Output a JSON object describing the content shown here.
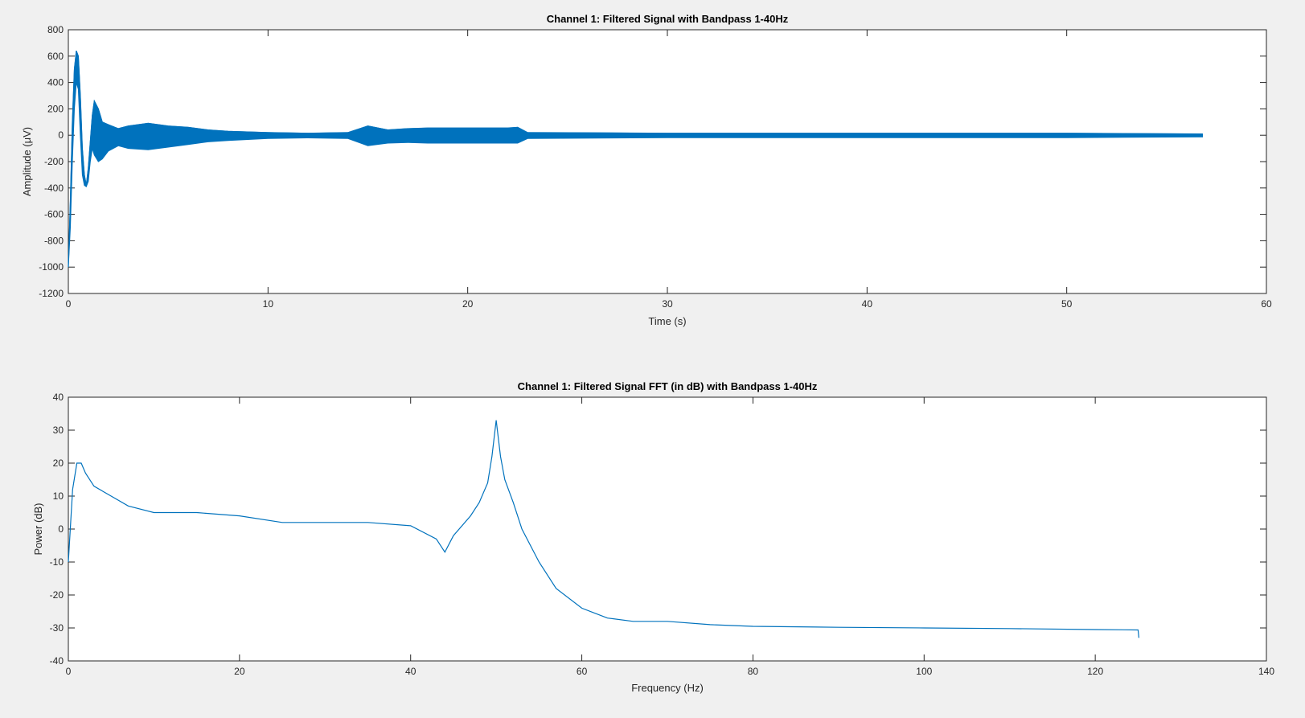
{
  "figure": {
    "background": "#f0f0f0",
    "line_color": "#0072bd"
  },
  "chart_data": [
    {
      "type": "line",
      "title": "Channel 1: Filtered Signal with Bandpass 1-40Hz",
      "xlabel": "Time (s)",
      "ylabel": "Amplitude (μV)",
      "xlim": [
        0,
        60
      ],
      "ylim": [
        -1200,
        800
      ],
      "xticks": [
        0,
        10,
        20,
        30,
        40,
        50,
        60
      ],
      "yticks": [
        -1200,
        -1000,
        -800,
        -600,
        -400,
        -200,
        0,
        200,
        400,
        600,
        800
      ],
      "grid": false,
      "series": [
        {
          "color": "#0072bd",
          "x": [
            0,
            0.1,
            0.2,
            0.3,
            0.4,
            0.5,
            0.6,
            0.7,
            0.8,
            0.9,
            1.0,
            1.1,
            1.2,
            1.3,
            1.5,
            1.7,
            2.0,
            2.5,
            3.0,
            4.0,
            5.0,
            6.0,
            7.0,
            8.0,
            10.0,
            12.0,
            14.0,
            15.0,
            16.0,
            17.0,
            18.0,
            19.0,
            20.0,
            21.0,
            22.0,
            22.5,
            23.0,
            30.0,
            40.0,
            50.0,
            56.8
          ],
          "y": [
            -1000,
            -500,
            100,
            500,
            640,
            600,
            300,
            -100,
            -300,
            -380,
            -250,
            -50,
            150,
            260,
            200,
            100,
            80,
            50,
            70,
            90,
            70,
            60,
            40,
            30,
            20,
            15,
            20,
            70,
            40,
            50,
            55,
            55,
            55,
            55,
            55,
            60,
            20,
            15,
            15,
            15,
            10
          ],
          "y_min_envelope": [
            -1000,
            -700,
            -200,
            200,
            400,
            350,
            0,
            -300,
            -380,
            -390,
            -350,
            -200,
            -100,
            -150,
            -200,
            -180,
            -120,
            -80,
            -100,
            -110,
            -90,
            -70,
            -50,
            -40,
            -25,
            -20,
            -25,
            -80,
            -60,
            -55,
            -60,
            -60,
            -60,
            -60,
            -60,
            -60,
            -25,
            -18,
            -18,
            -18,
            -12
          ]
        }
      ]
    },
    {
      "type": "line",
      "title": "Channel 1: Filtered Signal FFT (in dB) with Bandpass 1-40Hz",
      "xlabel": "Frequency (Hz)",
      "ylabel": "Power (dB)",
      "xlim": [
        0,
        140
      ],
      "ylim": [
        -40,
        40
      ],
      "xticks": [
        0,
        20,
        40,
        60,
        80,
        100,
        120,
        140
      ],
      "yticks": [
        -40,
        -30,
        -20,
        -10,
        0,
        10,
        20,
        30,
        40
      ],
      "grid": false,
      "series": [
        {
          "color": "#0072bd",
          "x": [
            0,
            0.5,
            1.0,
            1.5,
            2.0,
            3.0,
            5.0,
            7.0,
            10.0,
            15.0,
            20.0,
            25.0,
            30.0,
            35.0,
            40.0,
            43.0,
            44.0,
            45.0,
            47.0,
            48.0,
            49.0,
            49.5,
            50.0,
            50.5,
            51.0,
            52.0,
            53.0,
            55.0,
            57.0,
            60.0,
            63.0,
            66.0,
            70.0,
            75.0,
            80.0,
            90.0,
            100.0,
            110.0,
            120.0,
            125.0,
            125.1
          ],
          "y": [
            -10,
            12,
            20,
            20,
            17,
            13,
            10,
            7,
            5,
            5,
            4,
            2,
            2,
            2,
            1,
            -3,
            -7,
            -2,
            4,
            8,
            14,
            22,
            33,
            22,
            15,
            8,
            0,
            -10,
            -18,
            -24,
            -27,
            -28,
            -28,
            -29,
            -29.5,
            -29.8,
            -30,
            -30.2,
            -30.5,
            -30.6,
            -33
          ]
        }
      ]
    }
  ]
}
